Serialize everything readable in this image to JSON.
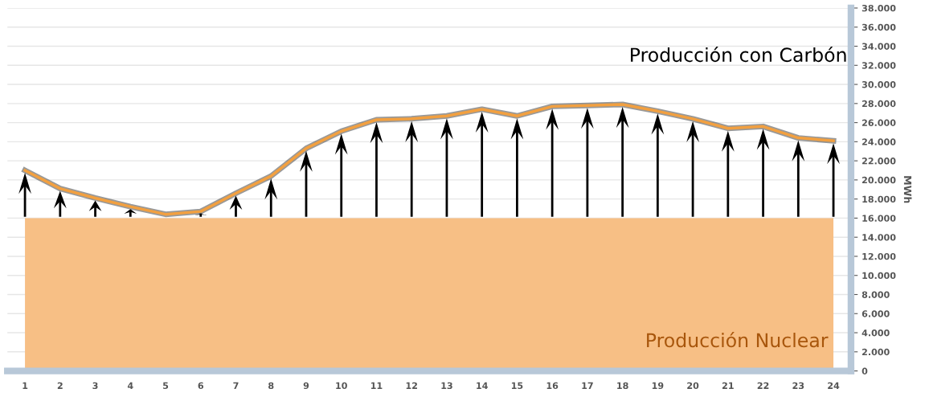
{
  "chart_data": {
    "type": "line",
    "ylabel": "MWh",
    "categories": [
      "1",
      "2",
      "3",
      "4",
      "5",
      "6",
      "7",
      "8",
      "9",
      "10",
      "11",
      "12",
      "13",
      "14",
      "15",
      "16",
      "17",
      "18",
      "19",
      "20",
      "21",
      "22",
      "23",
      "24"
    ],
    "series": [
      {
        "name": "Producción Nuclear",
        "type": "area",
        "color": "#f7bf85",
        "values": [
          16000,
          16000,
          16000,
          16000,
          16000,
          16000,
          16000,
          16000,
          16000,
          16000,
          16000,
          16000,
          16000,
          16000,
          16000,
          16000,
          16000,
          16000,
          16000,
          16000,
          16000,
          16000,
          16000,
          16000
        ]
      },
      {
        "name": "Producción con Carbón",
        "color": "#f2a040",
        "values": [
          21000,
          19100,
          18100,
          17200,
          16400,
          16700,
          18600,
          20400,
          23300,
          25100,
          26300,
          26400,
          26700,
          27400,
          26700,
          27700,
          27800,
          27900,
          27200,
          26400,
          25400,
          25600,
          24400,
          24100
        ]
      }
    ],
    "ylim": [
      0,
      38000
    ],
    "yticks": [
      {
        "value": 0,
        "label": "0"
      },
      {
        "value": 2000,
        "label": "2.000"
      },
      {
        "value": 4000,
        "label": "4.000"
      },
      {
        "value": 6000,
        "label": "6.000"
      },
      {
        "value": 8000,
        "label": "8.000"
      },
      {
        "value": 10000,
        "label": "10.000"
      },
      {
        "value": 12000,
        "label": "12.000"
      },
      {
        "value": 14000,
        "label": "14.000"
      },
      {
        "value": 16000,
        "label": "16.000"
      },
      {
        "value": 18000,
        "label": "18.000"
      },
      {
        "value": 20000,
        "label": "20.000"
      },
      {
        "value": 22000,
        "label": "22.000"
      },
      {
        "value": 24000,
        "label": "24.000"
      },
      {
        "value": 26000,
        "label": "26.000"
      },
      {
        "value": 28000,
        "label": "28.000"
      },
      {
        "value": 30000,
        "label": "30.000"
      },
      {
        "value": 32000,
        "label": "32.000"
      },
      {
        "value": 34000,
        "label": "34.000"
      },
      {
        "value": 36000,
        "label": "36.000"
      },
      {
        "value": 38000,
        "label": "38.000"
      }
    ],
    "grid": "y",
    "legend": false,
    "marker": "none",
    "line_style": "solid"
  }
}
